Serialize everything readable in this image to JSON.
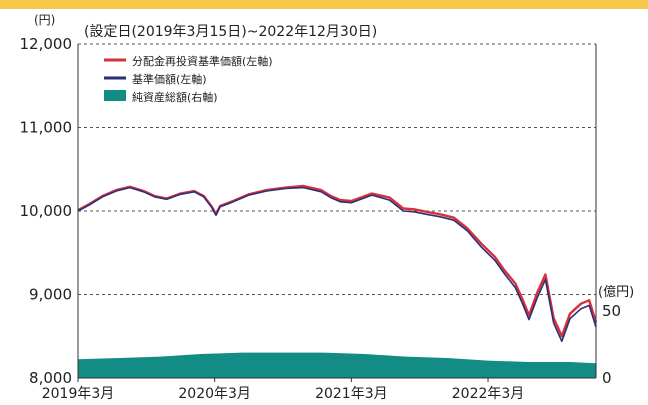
{
  "chart_data": {
    "type": "line",
    "subtitle": "(設定日(2019年3月15日)~2022年12月30日)",
    "left_axis": {
      "unit": "(円)",
      "ticks": [
        8000,
        9000,
        10000,
        11000,
        12000
      ],
      "tick_labels": [
        "8,000",
        "9,000",
        "10,000",
        "11,000",
        "12,000"
      ],
      "range": [
        8000,
        12000
      ]
    },
    "right_axis": {
      "unit": "(億円)",
      "ticks": [
        0,
        50
      ],
      "tick_labels": [
        "0",
        "50"
      ],
      "range": [
        0,
        250
      ]
    },
    "x_axis": {
      "tick_labels": [
        "2019年3月",
        "2020年3月",
        "2021年3月",
        "2022年3月"
      ],
      "tick_dates": [
        2019.2,
        2020.2,
        2021.2,
        2022.2
      ],
      "range": [
        2019.2,
        2022.99
      ]
    },
    "grid": "horizontal dashed",
    "legend": {
      "placement": "top-left",
      "entries": [
        "分配金再投資基準価額(左軸)",
        "基準価額(左軸)",
        "純資産総額(右軸)"
      ]
    },
    "series": [
      {
        "name": "分配金再投資基準価額(左軸)",
        "axis": "left",
        "kind": "line",
        "color": "#d9303a",
        "x": [
          2019.2,
          2019.28,
          2019.38,
          2019.48,
          2019.58,
          2019.68,
          2019.76,
          2019.85,
          2019.95,
          2020.05,
          2020.12,
          2020.18,
          2020.21,
          2020.24,
          2020.32,
          2020.45,
          2020.58,
          2020.72,
          2020.85,
          2020.98,
          2021.05,
          2021.12,
          2021.2,
          2021.35,
          2021.48,
          2021.58,
          2021.66,
          2021.75,
          2021.85,
          2021.95,
          2022.05,
          2022.15,
          2022.25,
          2022.32,
          2022.4,
          2022.45,
          2022.5,
          2022.56,
          2022.62,
          2022.68,
          2022.74,
          2022.8,
          2022.88,
          2022.94,
          2022.99
        ],
        "y": [
          10010,
          10080,
          10180,
          10250,
          10290,
          10240,
          10180,
          10150,
          10210,
          10240,
          10180,
          10050,
          9960,
          10060,
          10110,
          10200,
          10250,
          10280,
          10300,
          10250,
          10180,
          10130,
          10120,
          10210,
          10160,
          10030,
          10020,
          9990,
          9960,
          9920,
          9790,
          9610,
          9450,
          9290,
          9130,
          8950,
          8750,
          9020,
          9240,
          8720,
          8500,
          8770,
          8890,
          8930,
          8670
        ]
      },
      {
        "name": "基準価額(左軸)",
        "axis": "left",
        "kind": "line",
        "color": "#2a2f7a",
        "x": [
          2019.2,
          2019.28,
          2019.38,
          2019.48,
          2019.58,
          2019.68,
          2019.76,
          2019.85,
          2019.95,
          2020.05,
          2020.12,
          2020.18,
          2020.21,
          2020.24,
          2020.32,
          2020.45,
          2020.58,
          2020.72,
          2020.85,
          2020.98,
          2021.05,
          2021.12,
          2021.2,
          2021.35,
          2021.48,
          2021.58,
          2021.66,
          2021.75,
          2021.85,
          2021.95,
          2022.05,
          2022.15,
          2022.25,
          2022.32,
          2022.4,
          2022.45,
          2022.5,
          2022.56,
          2022.62,
          2022.68,
          2022.74,
          2022.8,
          2022.88,
          2022.94,
          2022.99
        ],
        "y": [
          10000,
          10070,
          10170,
          10240,
          10280,
          10230,
          10170,
          10140,
          10200,
          10230,
          10170,
          10040,
          9950,
          10050,
          10100,
          10190,
          10240,
          10270,
          10280,
          10230,
          10160,
          10110,
          10100,
          10190,
          10130,
          10000,
          9990,
          9960,
          9930,
          9890,
          9760,
          9570,
          9410,
          9250,
          9080,
          8900,
          8700,
          8960,
          9180,
          8660,
          8440,
          8710,
          8830,
          8870,
          8610
        ]
      },
      {
        "name": "純資産総額(右軸)",
        "axis": "right",
        "kind": "area",
        "color": "#138c85",
        "x": [
          2019.2,
          2019.5,
          2019.8,
          2020.1,
          2020.4,
          2020.7,
          2021.0,
          2021.3,
          2021.6,
          2021.9,
          2022.2,
          2022.5,
          2022.8,
          2022.99
        ],
        "y": [
          14,
          15,
          16,
          18,
          19,
          19,
          19,
          18,
          16,
          15,
          13,
          12,
          12,
          11
        ]
      }
    ]
  }
}
